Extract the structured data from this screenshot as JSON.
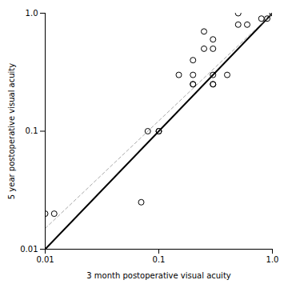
{
  "chart_data": {
    "type": "scatter",
    "xlabel": "3 month postoperative visual acuity",
    "ylabel": "5 year postoperative visual acuity",
    "x": [
      0.01,
      0.012,
      0.07,
      0.08,
      0.1,
      0.1,
      0.15,
      0.2,
      0.2,
      0.2,
      0.2,
      0.25,
      0.25,
      0.3,
      0.3,
      0.3,
      0.3,
      0.3,
      0.4,
      0.5,
      0.5,
      0.6,
      0.8,
      0.9,
      1.0
    ],
    "values": [
      0.02,
      0.02,
      0.025,
      0.1,
      0.1,
      0.1,
      0.3,
      0.25,
      0.25,
      0.3,
      0.4,
      0.5,
      0.7,
      0.25,
      0.25,
      0.3,
      0.5,
      0.6,
      0.3,
      0.8,
      1.0,
      0.8,
      0.9,
      0.9,
      1.0
    ],
    "color": "#000000",
    "marker": "circle",
    "lines": [
      {
        "x": [
          0.01,
          1.0
        ],
        "y": [
          0.01,
          1.0
        ],
        "color": "#000000",
        "line_style": "solid"
      },
      {
        "x": [
          0.01,
          1.0
        ],
        "y": [
          0.015,
          1.0
        ],
        "color": "#aaaaaa",
        "line_style": "dashed"
      }
    ],
    "log": true,
    "grid": false,
    "xlim": [
      0.01,
      1.0
    ],
    "ylim": [
      0.01,
      1.0
    ],
    "xticks": [
      0.01,
      0.1,
      {
        "value": 1.0,
        "label": "1.0"
      }
    ],
    "yticks": [
      0.01,
      0.1,
      {
        "value": 1.0,
        "label": "1.0"
      }
    ]
  }
}
